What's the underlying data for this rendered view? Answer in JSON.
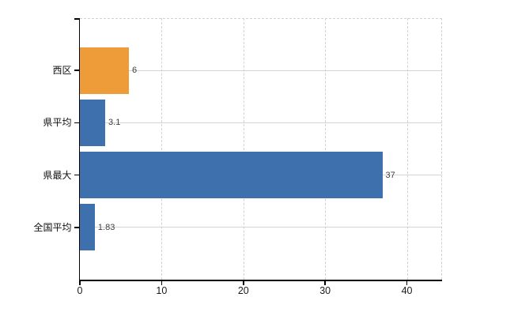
{
  "chart_data": {
    "type": "bar",
    "orientation": "horizontal",
    "title": "",
    "categories": [
      "西区",
      "県平均",
      "県最大",
      "全国平均"
    ],
    "values": [
      6,
      3.1,
      37,
      1.83
    ],
    "value_labels": [
      "6",
      "3.1",
      "37",
      "1.83"
    ],
    "bar_colors": [
      "#EE9B3A",
      "#3F70AE",
      "#3F70AE",
      "#3F70AE"
    ],
    "x_tick_labels": [
      "0",
      "10",
      "20",
      "30",
      "40"
    ],
    "x_tick_values": [
      0,
      10,
      20,
      30,
      40
    ],
    "xlim": [
      0,
      44.3
    ],
    "xlabel": "",
    "ylabel": "",
    "legend_position": "none",
    "grid": {
      "vertical": "dashed",
      "horizontal": "solid"
    }
  },
  "colors": {
    "background": "#ffffff",
    "axis": "#000000",
    "grid_vertical": "#d6ced6",
    "grid_horizontal": "#cfd8cf",
    "bar_orange": "#EE9B3A",
    "bar_blue": "#3F70AE",
    "value_label": "#404040",
    "category_label": "#111111",
    "tick_label": "#1a1a1a"
  }
}
